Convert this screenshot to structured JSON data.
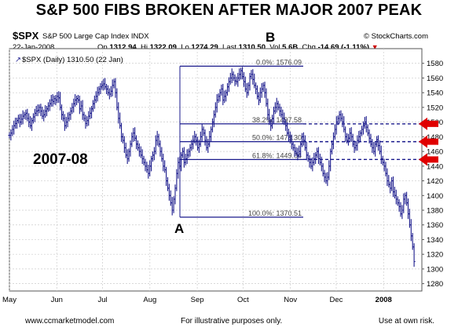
{
  "page": {
    "title": "S&P 500 FIBS BROKEN AFTER MAJOR 2007 PEAK",
    "symbol": "$SPX",
    "symbol_name": "S&P 500 Large Cap Index INDX",
    "copyright": "© StockCharts.com",
    "date": "22-Jan-2008",
    "quote": {
      "op_label": "Op",
      "op": "1312.94",
      "hi_label": "Hi",
      "hi": "1322.09",
      "lo_label": "Lo",
      "lo": "1274.29",
      "last_label": "Last",
      "last": "1310.50",
      "vol_label": "Vol",
      "vol": "5.6B",
      "chg_label": "Chg",
      "chg": "-14.69 (-1.11%)"
    },
    "legend_entry": "$SPX (Daily) 1310.50 (22 Jan)",
    "annotations": {
      "period": "2007-08",
      "point_a": "A",
      "point_b": "B"
    },
    "footer": {
      "left": "www.ccmarketmodel.com",
      "center": "For illustrative purposes only.",
      "right": "Use at own risk."
    },
    "colors": {
      "series": "#1a1a8c",
      "fib": "#1a1a8c",
      "arrows": "#e00000",
      "grid": "#cccccc"
    }
  },
  "chart_data": {
    "type": "ohlc",
    "ylim": [
      1270,
      1600
    ],
    "yticks": [
      1280,
      1300,
      1320,
      1340,
      1360,
      1380,
      1400,
      1420,
      1440,
      1460,
      1480,
      1500,
      1520,
      1540,
      1560,
      1580
    ],
    "xticks": [
      {
        "label": "May",
        "day": 0
      },
      {
        "label": "Jun",
        "day": 31
      },
      {
        "label": "Jul",
        "day": 61
      },
      {
        "label": "Aug",
        "day": 92
      },
      {
        "label": "Sep",
        "day": 123
      },
      {
        "label": "Oct",
        "day": 153
      },
      {
        "label": "Nov",
        "day": 184
      },
      {
        "label": "Dec",
        "day": 214
      },
      {
        "label": "2008",
        "day": 245,
        "bold": true
      }
    ],
    "xlim": [
      0,
      267
    ],
    "fib_levels": [
      {
        "label": "0.0%: 1576.09",
        "value": 1576.09
      },
      {
        "label": "38.2%: 1497.58",
        "value": 1497.58
      },
      {
        "label": "50.0%: 1473.30",
        "value": 1473.3
      },
      {
        "label": "61.8%: 1449.04",
        "value": 1449.04
      },
      {
        "label": "100.0%: 1370.51",
        "value": 1370.51
      }
    ],
    "arrow_levels": [
      1497.58,
      1473.3,
      1449.04
    ],
    "series": [
      {
        "name": "$SPX",
        "closes": [
          1482,
          1485,
          1490,
          1495,
          1498,
          1502,
          1505,
          1500,
          1504,
          1508,
          1510,
          1512,
          1505,
          1500,
          1495,
          1502,
          1507,
          1512,
          1515,
          1516,
          1520,
          1515,
          1508,
          1510,
          1515,
          1518,
          1522,
          1525,
          1530,
          1528,
          1532,
          1530,
          1535,
          1533,
          1520,
          1510,
          1505,
          1495,
          1500,
          1505,
          1510,
          1515,
          1520,
          1525,
          1530,
          1532,
          1530,
          1518,
          1522,
          1510,
          1505,
          1498,
          1502,
          1508,
          1512,
          1518,
          1525,
          1530,
          1535,
          1540,
          1545,
          1548,
          1550,
          1552,
          1548,
          1545,
          1540,
          1538,
          1542,
          1550,
          1555,
          1540,
          1520,
          1505,
          1495,
          1480,
          1475,
          1465,
          1455,
          1450,
          1460,
          1470,
          1480,
          1485,
          1478,
          1470,
          1465,
          1460,
          1455,
          1450,
          1445,
          1440,
          1435,
          1430,
          1440,
          1450,
          1455,
          1460,
          1475,
          1480,
          1470,
          1460,
          1450,
          1440,
          1435,
          1420,
          1410,
          1400,
          1390,
          1380,
          1395,
          1410,
          1430,
          1445,
          1440,
          1455,
          1460,
          1445,
          1450,
          1455,
          1460,
          1465,
          1470,
          1475,
          1480,
          1475,
          1465,
          1470,
          1480,
          1490,
          1485,
          1475,
          1465,
          1470,
          1480,
          1490,
          1500,
          1510,
          1520,
          1530,
          1535,
          1540,
          1545,
          1530,
          1535,
          1540,
          1548,
          1555,
          1560,
          1565,
          1560,
          1556,
          1555,
          1560,
          1565,
          1570,
          1562,
          1555,
          1545,
          1540,
          1550,
          1562,
          1565,
          1558,
          1550,
          1545,
          1535,
          1530,
          1540,
          1545,
          1550,
          1540,
          1525,
          1510,
          1500,
          1495,
          1505,
          1515,
          1520,
          1525,
          1520,
          1515,
          1510,
          1505,
          1500,
          1495,
          1485,
          1480,
          1475,
          1470,
          1465,
          1460,
          1458,
          1455,
          1460,
          1470,
          1480,
          1475,
          1465,
          1455,
          1450,
          1445,
          1440,
          1445,
          1450,
          1455,
          1460,
          1450,
          1445,
          1440,
          1430,
          1425,
          1420,
          1425,
          1440,
          1460,
          1470,
          1480,
          1490,
          1500,
          1505,
          1510,
          1505,
          1500,
          1490,
          1480,
          1475,
          1478,
          1485,
          1480,
          1470,
          1465,
          1468,
          1475,
          1480,
          1485,
          1490,
          1495,
          1500,
          1493,
          1485,
          1478,
          1470,
          1465,
          1460,
          1470,
          1476,
          1468,
          1460,
          1450,
          1445,
          1440,
          1430,
          1420,
          1415,
          1410,
          1420,
          1405,
          1400,
          1395,
          1390,
          1385,
          1375,
          1380,
          1395,
          1400,
          1390,
          1375,
          1360,
          1345,
          1330,
          1310
        ]
      }
    ]
  }
}
